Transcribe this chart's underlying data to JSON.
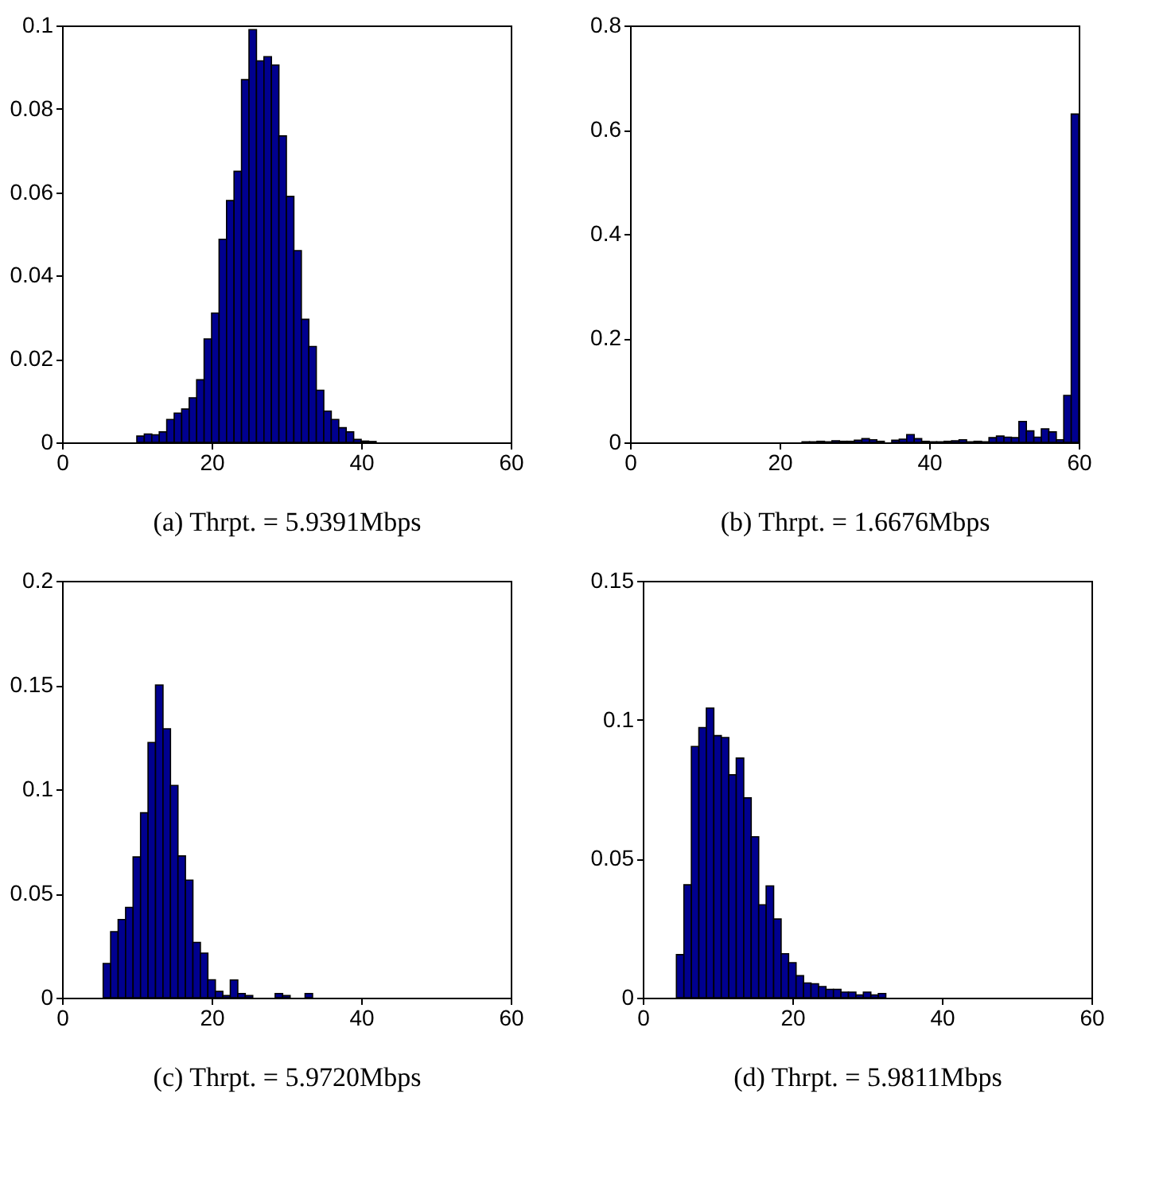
{
  "chart_data": [
    {
      "type": "histogram",
      "xlabel": "(a) Thrpt. = 5.9391Mbps",
      "color": "#00008f",
      "xlim": [
        0,
        60
      ],
      "xticks": [
        0,
        20,
        40,
        60
      ],
      "ylim": [
        0,
        0.1
      ],
      "yticks": [
        0,
        0.02,
        0.04,
        0.06,
        0.08,
        0.1
      ],
      "bins": [
        10,
        11,
        12,
        13,
        14,
        15,
        16,
        17,
        18,
        19,
        20,
        21,
        22,
        23,
        24,
        25,
        26,
        27,
        28,
        29,
        30,
        31,
        32,
        33,
        34,
        35,
        36,
        37,
        38,
        39,
        40,
        41,
        42
      ],
      "values": [
        0.0015,
        0.002,
        0.0018,
        0.0025,
        0.0055,
        0.007,
        0.008,
        0.0107,
        0.015,
        0.0248,
        0.031,
        0.0487,
        0.058,
        0.065,
        0.087,
        0.099,
        0.0915,
        0.0925,
        0.0905,
        0.0735,
        0.059,
        0.046,
        0.0295,
        0.023,
        0.0125,
        0.0075,
        0.0055,
        0.0035,
        0.0025,
        0.0007,
        0.0003,
        0.0002
      ]
    },
    {
      "type": "histogram",
      "xlabel": "(b) Thrpt. = 1.6676Mbps",
      "color": "#00008f",
      "xlim": [
        0,
        60
      ],
      "xticks": [
        0,
        20,
        40,
        60
      ],
      "ylim": [
        0,
        0.8
      ],
      "yticks": [
        0,
        0.2,
        0.4,
        0.6,
        0.8
      ],
      "bins": [
        23,
        24,
        25,
        26,
        27,
        28,
        29,
        30,
        31,
        32,
        33,
        34,
        35,
        36,
        37,
        38,
        39,
        40,
        41,
        42,
        43,
        44,
        45,
        46,
        47,
        48,
        49,
        50,
        51,
        52,
        53,
        54,
        55,
        56,
        57,
        58,
        59,
        60
      ],
      "values": [
        0.001,
        0.001,
        0.002,
        0.001,
        0.003,
        0.002,
        0.002,
        0.004,
        0.007,
        0.005,
        0.002,
        null,
        0.004,
        0.006,
        0.015,
        0.007,
        0.002,
        0.001,
        0.001,
        0.002,
        0.003,
        0.005,
        0.001,
        0.002,
        0.001,
        0.009,
        0.012,
        0.01,
        0.009,
        0.04,
        0.022,
        0.01,
        0.026,
        0.02,
        0.005,
        0.09,
        0.63
      ]
    },
    {
      "type": "histogram",
      "xlabel": "(c) Thrpt. = 5.9720Mbps",
      "color": "#00008f",
      "xlim": [
        0,
        60
      ],
      "xticks": [
        0,
        20,
        40,
        60
      ],
      "ylim": [
        0,
        0.2
      ],
      "yticks": [
        0,
        0.05,
        0.1,
        0.15,
        0.2
      ],
      "bins": [
        5.5,
        6.5,
        7.5,
        8.5,
        9.5,
        10.5,
        11.5,
        12.5,
        13.5,
        14.5,
        15.5,
        16.5,
        17.5,
        18.5,
        19.5,
        20.5,
        21.5,
        22.5,
        23.5,
        24.5,
        25.5,
        26.5,
        27.5,
        28.5,
        29.5,
        30.5,
        31.5,
        32.5,
        33.5
      ],
      "values": [
        0.0164,
        0.0317,
        0.0375,
        0.0433,
        0.0675,
        0.0887,
        0.1224,
        0.15,
        0.129,
        0.1018,
        0.068,
        0.0564,
        0.0265,
        0.0214,
        0.0086,
        0.003,
        0.001,
        0.0085,
        0.002,
        0.001,
        null,
        null,
        null,
        0.002,
        0.001,
        null,
        null,
        0.002
      ]
    },
    {
      "type": "histogram",
      "xlabel": "(d) Thrpt. = 5.9811Mbps",
      "color": "#00008f",
      "xlim": [
        0,
        60
      ],
      "xticks": [
        0,
        20,
        40,
        60
      ],
      "ylim": [
        0,
        0.15
      ],
      "yticks": [
        0,
        0.05,
        0.1,
        0.15
      ],
      "bins": [
        4.5,
        5.5,
        6.5,
        7.5,
        8.5,
        9.5,
        10.5,
        11.5,
        12.5,
        13.5,
        14.5,
        15.5,
        16.5,
        17.5,
        18.5,
        19.5,
        20.5,
        21.5,
        22.5,
        23.5,
        24.5,
        25.5,
        26.5,
        27.5,
        28.5,
        29.5,
        30.5,
        31.5,
        32.5
      ],
      "values": [
        0.0155,
        0.0406,
        0.0904,
        0.0972,
        0.1042,
        0.0943,
        0.0936,
        0.0802,
        0.0862,
        0.0719,
        0.0579,
        0.0334,
        0.0402,
        0.0283,
        0.0158,
        0.0126,
        0.0079,
        0.0053,
        0.005,
        0.004,
        0.003,
        0.003,
        0.002,
        0.002,
        0.001,
        0.002,
        0.001,
        0.0015
      ]
    }
  ]
}
